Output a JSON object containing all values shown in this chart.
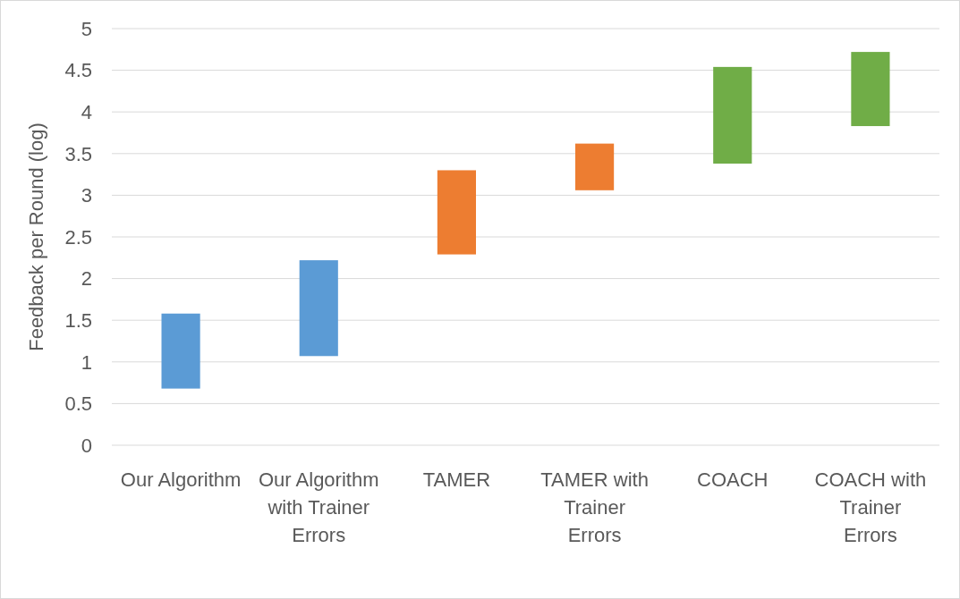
{
  "chart_data": {
    "type": "bar",
    "ylabel": "Feedback per Round (log)",
    "categories": [
      "Our Algorithm",
      "Our Algorithm with Trainer Errors",
      "TAMER",
      "TAMER with Trainer Errors",
      "COACH",
      "COACH with Trainer Errors"
    ],
    "base": [
      0.68,
      1.07,
      2.29,
      3.06,
      3.38,
      3.83
    ],
    "values": [
      0.9,
      1.15,
      1.01,
      0.56,
      1.16,
      0.89
    ],
    "colors": [
      "#5b9bd5",
      "#5b9bd5",
      "#ed7d31",
      "#ed7d31",
      "#70ad47",
      "#70ad47"
    ],
    "ylim": [
      0,
      5
    ],
    "yticks": [
      0,
      0.5,
      1,
      1.5,
      2,
      2.5,
      3,
      3.5,
      4,
      4.5,
      5
    ],
    "grid": "y"
  }
}
